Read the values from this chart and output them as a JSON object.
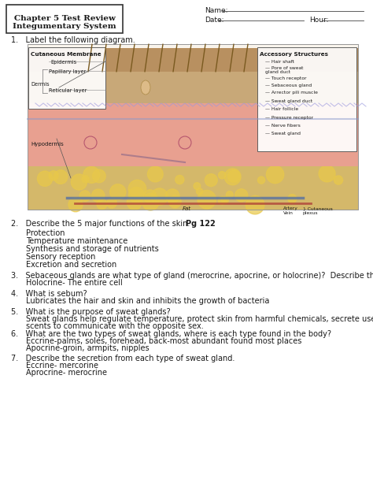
{
  "title_line1": "Chapter 5 Test Review",
  "title_line2": "Integumentary System",
  "name_label": "Name:",
  "date_label": "Date:",
  "hour_label": "Hour:",
  "q1": "1.   Label the following diagram.",
  "q2_q": "2.   Describe the 5 major functions of the skin.  ",
  "q2_bold_part": "Pg 122",
  "q2_answers": [
    "Protection",
    "Temperature maintenance",
    "Synthesis and storage of nutrients",
    "Sensory reception",
    "Excretion and secretion"
  ],
  "q3_q": "3.   Sebaceous glands are what type of gland (merocrine, apocrine, or holocrine)?  Describe the secretion from this gland.",
  "q3_a": "Holocrine- The entire cell",
  "q4_q": "4.   What is sebum?",
  "q4_a": "Lubricates the hair and skin and inhibits the growth of bacteria",
  "q5_q": "5.   What is the purpose of sweat glands?",
  "q5_a1": "Sweat glands help regulate temperature, protect skin from harmful chemicals, secrete useful substances such and milk, or",
  "q5_a2": "scents to communicate with the opposite sex.",
  "q6_q": "6.   What are the two types of sweat glands, where is each type found in the body?",
  "q6_a1": "Eccrine-palms, soles, forehead, back-most abundant found most places",
  "q6_a2": "Apocrine-groin, armpits, nipples",
  "q7_q": "7.   Describe the secretion from each type of sweat gland.",
  "q7_a1": "Eccrine- mercorine",
  "q7_a2": "Aprocrine- merocrine",
  "bg_color": "#ffffff",
  "text_color": "#1a1a1a",
  "left_labels": {
    "title": "Cutaneous Membrane",
    "epidermis": "Epidermis",
    "dermis": "Dermis",
    "papillary": "Papillary layer",
    "reticular": "Reticular layer",
    "hypodermis": "Hypodermis"
  },
  "right_labels": {
    "title": "Accessory Structures",
    "items": [
      "Hair shaft",
      "Pore of sweat\ngland duct",
      "Touch receptor",
      "Sebaceous gland",
      "Arrector pili muscle",
      "Sweat gland duct",
      "Hair follicle",
      "Pressure receptor",
      "Nerve fibers",
      "Sweat gland"
    ]
  },
  "bottom_labels": {
    "artery": "Artery",
    "vein": "Vein",
    "fat": "Fat",
    "cutaneous": "Cutaneous\nplexus"
  }
}
